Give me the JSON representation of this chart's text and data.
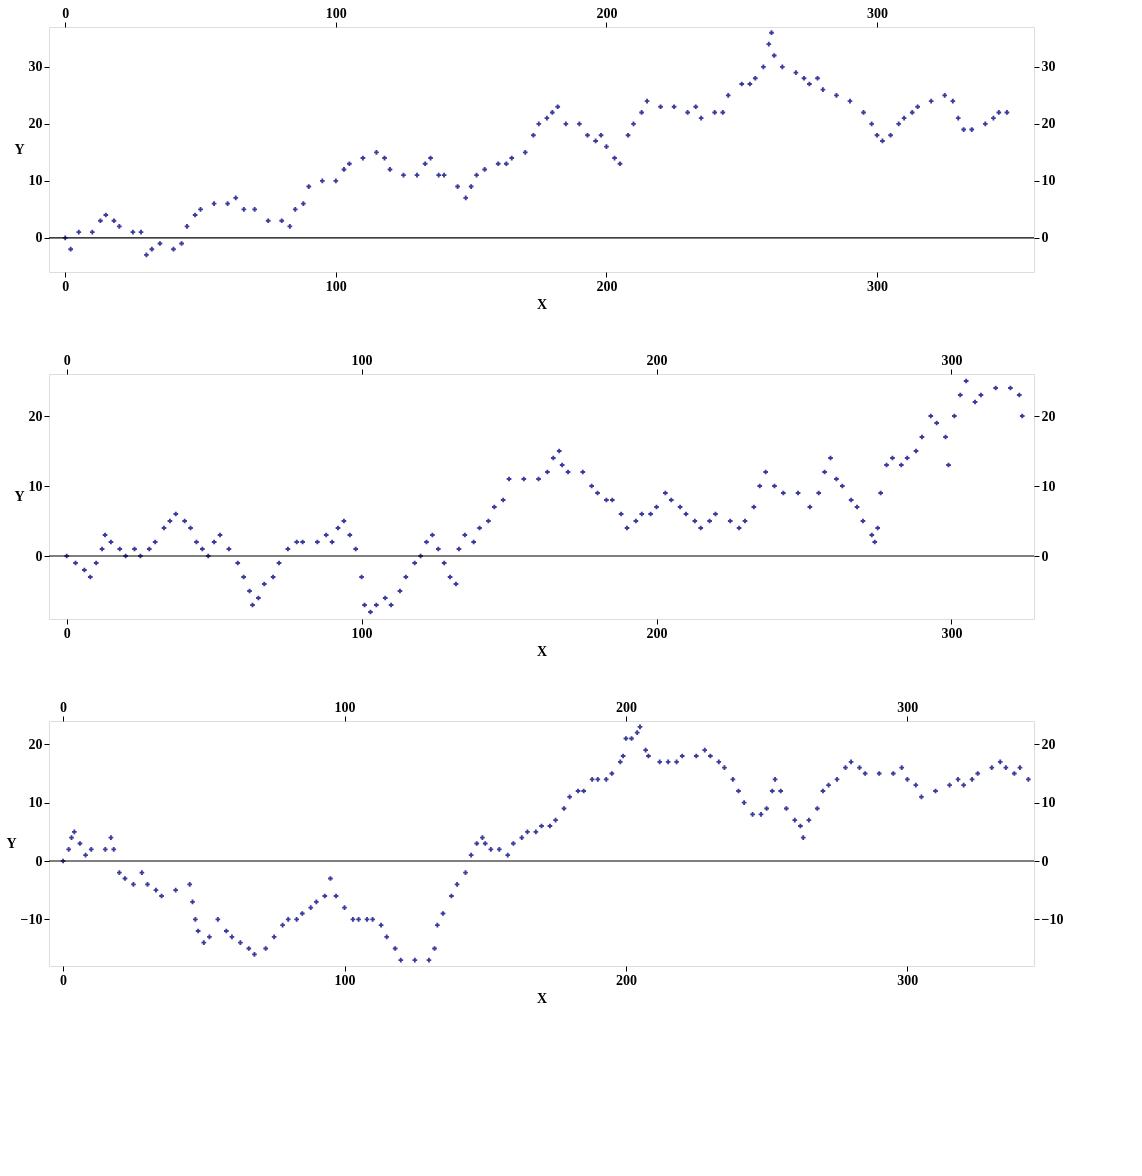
{
  "chart_data": [
    {
      "type": "scatter",
      "xlabel": "X",
      "ylabel": "Y",
      "marker": "cross",
      "grid": false,
      "xlim": [
        -6,
        358
      ],
      "ylim": [
        -6,
        37
      ],
      "xticks": [
        0,
        100,
        200,
        300
      ],
      "yticks": [
        0,
        10,
        20,
        30
      ],
      "x2lim": [
        -6,
        358
      ],
      "x2ticks": [
        0,
        100,
        200,
        300
      ],
      "y2lim": [
        -6,
        37
      ],
      "y2ticks": [
        0,
        10,
        20,
        30
      ],
      "ref_lines": [
        {
          "axis": "y",
          "value": 0,
          "color": "#000000"
        }
      ],
      "series": [
        {
          "color": "#3c3c9c",
          "x": [
            0,
            2,
            5,
            10,
            13,
            15,
            18,
            20,
            25,
            28,
            30,
            32,
            35,
            40,
            43,
            45,
            48,
            50,
            55,
            60,
            63,
            66,
            70,
            75,
            80,
            83,
            85,
            88,
            90,
            95,
            100,
            103,
            105,
            110,
            115,
            118,
            120,
            125,
            130,
            133,
            135,
            138,
            140,
            145,
            148,
            150,
            152,
            155,
            160,
            163,
            165,
            170,
            173,
            175,
            178,
            180,
            182,
            185,
            190,
            193,
            196,
            198,
            200,
            203,
            205,
            208,
            210,
            213,
            215,
            220,
            225,
            230,
            233,
            235,
            240,
            243,
            245,
            250,
            253,
            255,
            258,
            260,
            261,
            262,
            265,
            270,
            273,
            275,
            278,
            280,
            285,
            290,
            295,
            298,
            300,
            302,
            305,
            308,
            310,
            313,
            315,
            320,
            325,
            328,
            330,
            332,
            335,
            340,
            343,
            345,
            348
          ],
          "values": [
            0,
            -2,
            1,
            1,
            3,
            4,
            3,
            2,
            1,
            1,
            -3,
            -2,
            -1,
            -2,
            -1,
            2,
            4,
            5,
            6,
            6,
            7,
            5,
            5,
            3,
            3,
            2,
            5,
            6,
            9,
            10,
            10,
            12,
            13,
            14,
            15,
            14,
            12,
            11,
            11,
            13,
            14,
            11,
            11,
            9,
            7,
            9,
            11,
            12,
            13,
            13,
            14,
            15,
            18,
            20,
            21,
            22,
            23,
            20,
            20,
            18,
            17,
            18,
            16,
            14,
            13,
            18,
            20,
            22,
            24,
            23,
            23,
            22,
            23,
            21,
            22,
            22,
            25,
            27,
            27,
            28,
            30,
            34,
            36,
            32,
            30,
            29,
            28,
            27,
            28,
            26,
            25,
            24,
            22,
            20,
            18,
            17,
            18,
            20,
            21,
            22,
            23,
            24,
            25,
            24,
            21,
            19,
            19,
            20,
            21,
            22,
            22
          ]
        }
      ]
    },
    {
      "type": "scatter",
      "xlabel": "X",
      "ylabel": "Y",
      "marker": "cross",
      "grid": false,
      "xlim": [
        -6,
        328
      ],
      "ylim": [
        -9,
        26
      ],
      "xticks": [
        0,
        100,
        200,
        300
      ],
      "yticks": [
        0,
        10,
        20
      ],
      "x2lim": [
        -6,
        328
      ],
      "x2ticks": [
        0,
        100,
        200,
        300
      ],
      "y2lim": [
        -9,
        26
      ],
      "y2ticks": [
        0,
        10,
        20
      ],
      "ref_lines": [
        {
          "axis": "y",
          "value": 0,
          "color": "#000000"
        }
      ],
      "series": [
        {
          "color": "#3c3c9c",
          "x": [
            0,
            3,
            6,
            8,
            10,
            12,
            13,
            15,
            18,
            20,
            23,
            25,
            28,
            30,
            33,
            35,
            37,
            40,
            42,
            44,
            46,
            48,
            50,
            52,
            55,
            58,
            60,
            62,
            63,
            65,
            67,
            70,
            72,
            75,
            78,
            80,
            85,
            88,
            90,
            92,
            94,
            96,
            98,
            100,
            101,
            103,
            105,
            108,
            110,
            113,
            115,
            118,
            120,
            122,
            124,
            126,
            128,
            130,
            132,
            133,
            135,
            138,
            140,
            143,
            145,
            148,
            150,
            155,
            160,
            163,
            165,
            167,
            168,
            170,
            175,
            178,
            180,
            183,
            185,
            188,
            190,
            193,
            195,
            198,
            200,
            203,
            205,
            208,
            210,
            213,
            215,
            218,
            220,
            225,
            228,
            230,
            233,
            235,
            237,
            240,
            243,
            248,
            252,
            255,
            257,
            259,
            261,
            263,
            266,
            268,
            270,
            273,
            274,
            275,
            276,
            278,
            280,
            283,
            285,
            288,
            290,
            293,
            295,
            298,
            299,
            301,
            303,
            305,
            308,
            310,
            315,
            320,
            323,
            324
          ],
          "values": [
            0,
            -1,
            -2,
            -3,
            -1,
            1,
            3,
            2,
            1,
            0,
            1,
            0,
            1,
            2,
            4,
            5,
            6,
            5,
            4,
            2,
            1,
            0,
            2,
            3,
            1,
            -1,
            -3,
            -5,
            -7,
            -6,
            -4,
            -3,
            -1,
            1,
            2,
            2,
            2,
            3,
            2,
            4,
            5,
            3,
            1,
            -3,
            -7,
            -8,
            -7,
            -6,
            -7,
            -5,
            -3,
            -1,
            0,
            2,
            3,
            1,
            -1,
            -3,
            -4,
            1,
            3,
            2,
            4,
            5,
            7,
            8,
            11,
            11,
            11,
            12,
            14,
            15,
            13,
            12,
            12,
            10,
            9,
            8,
            8,
            6,
            4,
            5,
            6,
            6,
            7,
            9,
            8,
            7,
            6,
            5,
            4,
            5,
            6,
            5,
            4,
            5,
            7,
            10,
            12,
            10,
            9,
            9,
            7,
            9,
            12,
            14,
            11,
            10,
            8,
            7,
            5,
            3,
            2,
            4,
            9,
            13,
            14,
            13,
            14,
            15,
            17,
            20,
            19,
            17,
            13,
            20,
            23,
            25,
            22,
            23,
            24,
            24,
            23,
            20
          ]
        }
      ]
    },
    {
      "type": "scatter",
      "xlabel": "X",
      "ylabel": "Y",
      "marker": "cross",
      "grid": false,
      "xlim": [
        -5,
        345
      ],
      "ylim": [
        -18,
        24
      ],
      "xticks": [
        0,
        100,
        200,
        300
      ],
      "yticks": [
        {
          "value": -10,
          "label": "−10"
        },
        0,
        10,
        20
      ],
      "x2lim": [
        -5,
        345
      ],
      "x2ticks": [
        0,
        100,
        200,
        300
      ],
      "y2lim": [
        -18,
        24
      ],
      "y2ticks": [
        {
          "value": -10,
          "label": "−10"
        },
        0,
        10,
        20
      ],
      "ref_lines": [
        {
          "axis": "y",
          "value": 0,
          "color": "#000000"
        }
      ],
      "series": [
        {
          "color": "#3c3c9c",
          "x": [
            0,
            2,
            3,
            4,
            6,
            8,
            10,
            15,
            17,
            18,
            20,
            22,
            25,
            28,
            30,
            33,
            35,
            40,
            45,
            46,
            47,
            48,
            50,
            52,
            55,
            58,
            60,
            63,
            66,
            68,
            72,
            75,
            78,
            80,
            83,
            85,
            88,
            90,
            93,
            95,
            97,
            100,
            103,
            105,
            108,
            110,
            113,
            115,
            118,
            120,
            125,
            130,
            132,
            133,
            135,
            138,
            140,
            143,
            145,
            147,
            149,
            150,
            152,
            155,
            158,
            160,
            163,
            165,
            168,
            170,
            173,
            175,
            178,
            180,
            183,
            185,
            188,
            190,
            193,
            195,
            198,
            199,
            200,
            202,
            204,
            205,
            207,
            208,
            212,
            215,
            218,
            220,
            225,
            228,
            230,
            233,
            235,
            238,
            240,
            242,
            245,
            248,
            250,
            252,
            253,
            255,
            257,
            260,
            262,
            263,
            265,
            268,
            270,
            272,
            275,
            278,
            280,
            283,
            285,
            290,
            295,
            298,
            300,
            303,
            305,
            310,
            315,
            318,
            320,
            323,
            325,
            330,
            333,
            335,
            338,
            340,
            343
          ],
          "values": [
            0,
            2,
            4,
            5,
            3,
            1,
            2,
            2,
            4,
            2,
            -2,
            -3,
            -4,
            -2,
            -4,
            -5,
            -6,
            -5,
            -4,
            -7,
            -10,
            -12,
            -14,
            -13,
            -10,
            -12,
            -13,
            -14,
            -15,
            -16,
            -15,
            -13,
            -11,
            -10,
            -10,
            -9,
            -8,
            -7,
            -6,
            -3,
            -6,
            -8,
            -10,
            -10,
            -10,
            -10,
            -11,
            -13,
            -15,
            -17,
            -17,
            -17,
            -15,
            -11,
            -9,
            -6,
            -4,
            -2,
            1,
            3,
            4,
            3,
            2,
            2,
            1,
            3,
            4,
            5,
            5,
            6,
            6,
            7,
            9,
            11,
            12,
            12,
            14,
            14,
            14,
            15,
            17,
            18,
            21,
            21,
            22,
            23,
            19,
            18,
            17,
            17,
            17,
            18,
            18,
            19,
            18,
            17,
            16,
            14,
            12,
            10,
            8,
            8,
            9,
            12,
            14,
            12,
            9,
            7,
            6,
            4,
            7,
            9,
            12,
            13,
            14,
            16,
            17,
            16,
            15,
            15,
            15,
            16,
            14,
            13,
            11,
            12,
            13,
            14,
            13,
            14,
            15,
            16,
            17,
            16,
            15,
            16,
            14
          ]
        }
      ]
    }
  ]
}
